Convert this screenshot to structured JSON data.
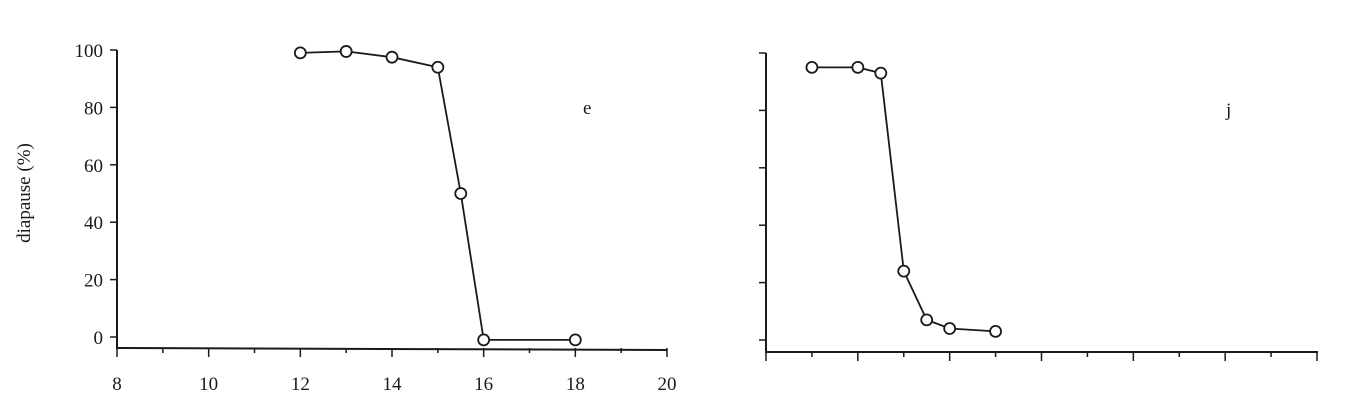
{
  "chart_data": [
    {
      "type": "line",
      "panel_label": "e",
      "ylabel": "diapause (%)",
      "xlabel": "",
      "xlim": [
        8,
        20
      ],
      "ylim": [
        0,
        100
      ],
      "x_ticks": [
        8,
        10,
        12,
        14,
        16,
        18,
        20
      ],
      "y_ticks": [
        0,
        20,
        40,
        60,
        80,
        100
      ],
      "show_x_tick_labels": true,
      "show_y_tick_labels": true,
      "grid": false,
      "marker": "open-circle",
      "series": [
        {
          "x": [
            12,
            13,
            14,
            15,
            15.5,
            16,
            18
          ],
          "y": [
            99,
            99.5,
            97.5,
            94,
            50,
            -1,
            -1
          ]
        }
      ]
    },
    {
      "type": "line",
      "panel_label": "j",
      "ylabel": "",
      "xlabel": "",
      "xlim": [
        8,
        20
      ],
      "ylim": [
        0,
        100
      ],
      "x_ticks": [
        8,
        10,
        12,
        14,
        16,
        18,
        20
      ],
      "y_ticks": [
        0,
        20,
        40,
        60,
        80,
        100
      ],
      "show_x_tick_labels": false,
      "show_y_tick_labels": false,
      "grid": false,
      "marker": "open-circle",
      "series": [
        {
          "x": [
            9,
            10,
            10.5,
            11,
            11.5,
            12,
            13
          ],
          "y": [
            95,
            95,
            93,
            24,
            7,
            4,
            3
          ]
        }
      ]
    }
  ]
}
